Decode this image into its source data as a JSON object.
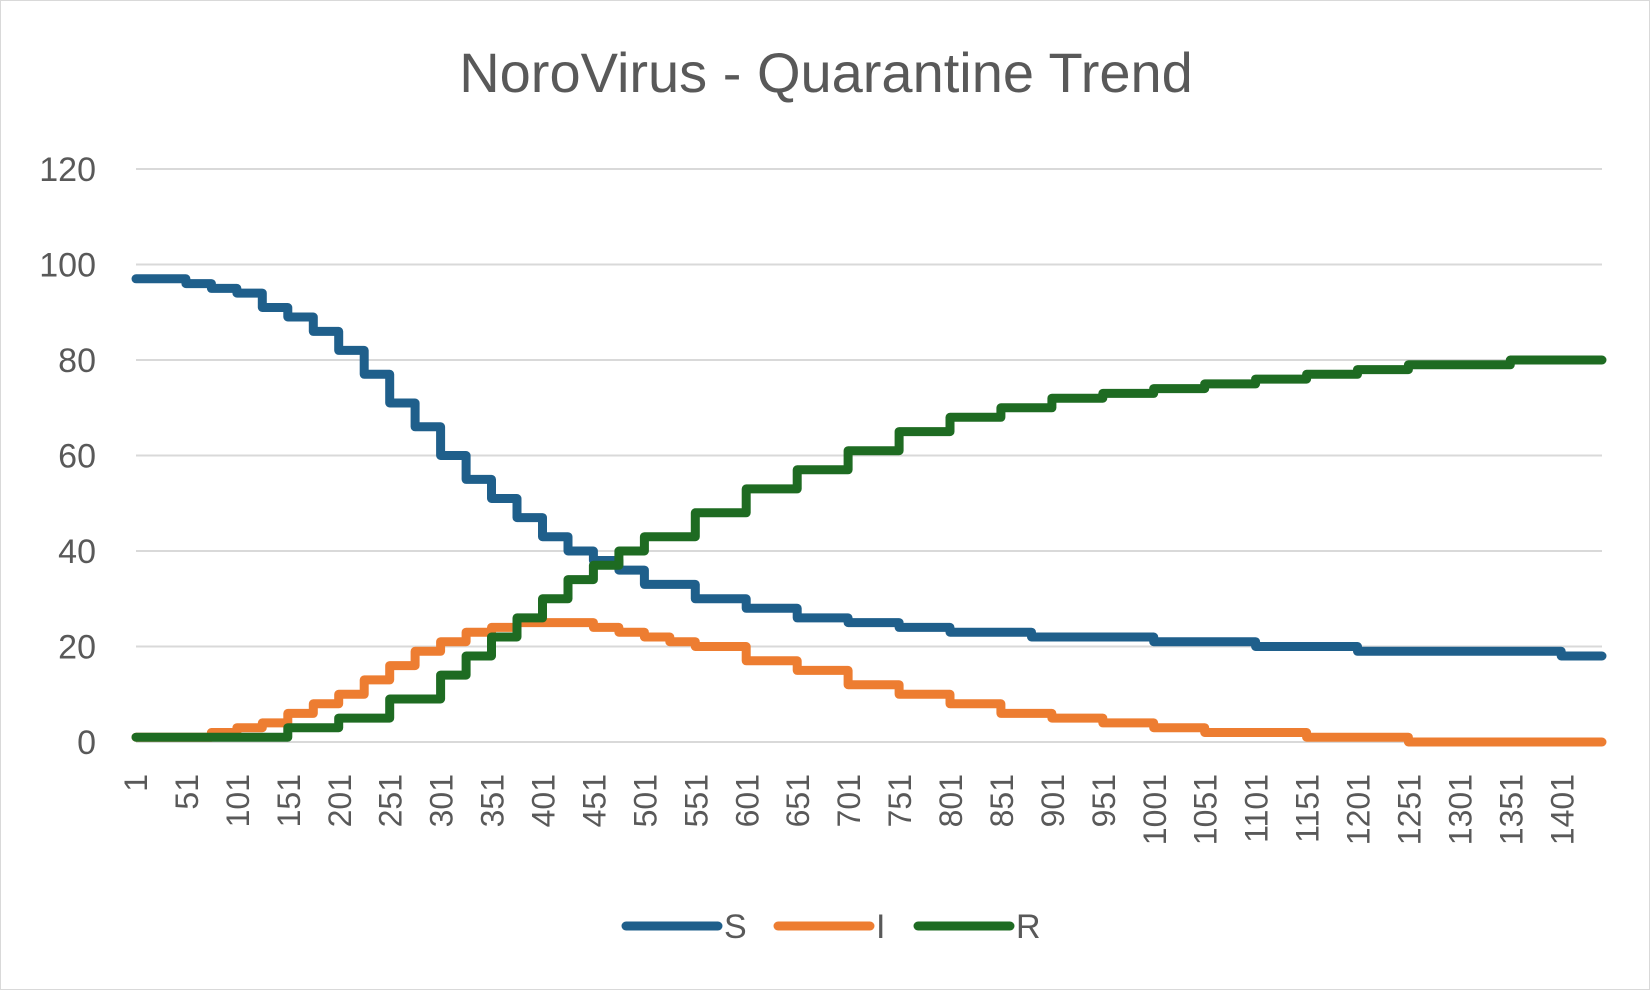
{
  "chart_data": {
    "type": "line",
    "title": "NoroVirus - Quarantine Trend",
    "xlabel": "",
    "ylabel": "",
    "ylim": [
      0,
      120
    ],
    "yticks": [
      "0",
      "20",
      "40",
      "60",
      "80",
      "100",
      "120"
    ],
    "xticks": [
      "1",
      "51",
      "101",
      "151",
      "201",
      "251",
      "301",
      "351",
      "401",
      "451",
      "501",
      "551",
      "601",
      "651",
      "701",
      "751",
      "801",
      "851",
      "901",
      "951",
      "1001",
      "1051",
      "1101",
      "1151",
      "1201",
      "1251",
      "1301",
      "1351",
      "1401"
    ],
    "xlim": [
      1,
      1440
    ],
    "grid": true,
    "legend_position": "bottom",
    "series": [
      {
        "name": "S",
        "color": "#1f5f8b",
        "x": [
          1,
          50,
          75,
          100,
          125,
          150,
          175,
          200,
          225,
          250,
          275,
          300,
          325,
          350,
          375,
          400,
          425,
          450,
          475,
          500,
          550,
          600,
          650,
          700,
          750,
          800,
          850,
          880,
          1000,
          1100,
          1200,
          1250,
          1350,
          1400,
          1440
        ],
        "values": [
          97,
          96,
          95,
          94,
          91,
          89,
          86,
          82,
          77,
          71,
          66,
          60,
          55,
          51,
          47,
          43,
          40,
          38,
          36,
          33,
          30,
          28,
          26,
          25,
          24,
          23,
          23,
          22,
          21,
          20,
          19,
          19,
          19,
          18,
          18
        ]
      },
      {
        "name": "I",
        "color": "#ed7d31",
        "x": [
          1,
          50,
          75,
          100,
          125,
          150,
          175,
          200,
          225,
          250,
          275,
          300,
          325,
          350,
          375,
          400,
          425,
          450,
          475,
          500,
          525,
          550,
          600,
          650,
          700,
          750,
          800,
          850,
          900,
          950,
          1000,
          1050,
          1100,
          1150,
          1200,
          1250,
          1300,
          1440
        ],
        "values": [
          1,
          1,
          2,
          3,
          4,
          6,
          8,
          10,
          13,
          16,
          19,
          21,
          23,
          24,
          25,
          25,
          25,
          24,
          23,
          22,
          21,
          20,
          17,
          15,
          12,
          10,
          8,
          6,
          5,
          4,
          3,
          2,
          2,
          1,
          1,
          0,
          0,
          0
        ]
      },
      {
        "name": "R",
        "color": "#1e6b22",
        "x": [
          1,
          50,
          100,
          150,
          200,
          250,
          300,
          325,
          350,
          375,
          400,
          425,
          450,
          475,
          500,
          550,
          600,
          650,
          700,
          750,
          800,
          850,
          900,
          950,
          1000,
          1050,
          1100,
          1150,
          1200,
          1250,
          1300,
          1350,
          1440
        ],
        "values": [
          1,
          1,
          1,
          3,
          5,
          9,
          14,
          18,
          22,
          26,
          30,
          34,
          37,
          40,
          43,
          48,
          53,
          57,
          61,
          65,
          68,
          70,
          72,
          73,
          74,
          75,
          76,
          77,
          78,
          79,
          79,
          80,
          80
        ]
      }
    ]
  }
}
